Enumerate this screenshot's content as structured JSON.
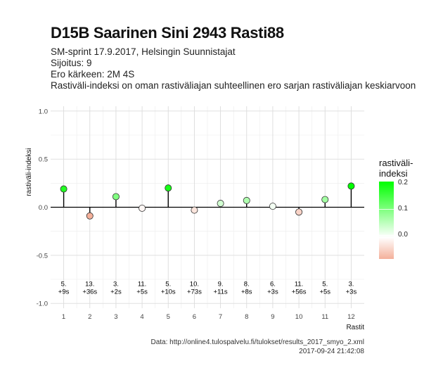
{
  "title": "D15B Saarinen Sini 2943 Rasti88",
  "subtitle_lines": [
    "SM-sprint 17.9.2017, Helsingin Suunnistajat",
    "Sijoitus: 9",
    "Ero kärkeen: 2M 4S",
    "Rastiväli-indeksi on oman rastiväliajan suhteellinen ero sarjan rastiväliajan keskiarvoon"
  ],
  "caption_lines": [
    "Data: http://online4.tulospalvelu.fi/tulokset/results_2017_smyo_2.xml",
    "2017-09-24 21:42:08"
  ],
  "colors": {
    "high": "#00ff00",
    "mid": "#ffffff",
    "low": "#f4b09a"
  },
  "legend": {
    "title": "rastiväli-\nindeksi",
    "labels": [
      "0.2",
      "0.1",
      "0.0"
    ]
  },
  "chart_data": {
    "type": "lollipop",
    "xlabel": "Rastit",
    "ylabel": "rastiväli-indeksi",
    "xlim": [
      0.5,
      12.5
    ],
    "ylim": [
      -1.05,
      1.05
    ],
    "x_ticks": [
      "1",
      "2",
      "3",
      "4",
      "5",
      "6",
      "7",
      "8",
      "9",
      "10",
      "11",
      "12"
    ],
    "y_ticks": [
      "1.0",
      "0.5",
      "0.0",
      "-0.5",
      "-1.0"
    ],
    "y_tick_values": [
      1.0,
      0.5,
      0.0,
      -0.5,
      -1.0
    ],
    "grid": true,
    "legend_position": "right",
    "points": [
      {
        "x": 1,
        "y": 0.19,
        "rank": "5.",
        "diff": "+9s"
      },
      {
        "x": 2,
        "y": -0.09,
        "rank": "13.",
        "diff": "+36s"
      },
      {
        "x": 3,
        "y": 0.11,
        "rank": "3.",
        "diff": "+2s"
      },
      {
        "x": 4,
        "y": -0.01,
        "rank": "11.",
        "diff": "+5s"
      },
      {
        "x": 5,
        "y": 0.2,
        "rank": "5.",
        "diff": "+10s"
      },
      {
        "x": 6,
        "y": -0.03,
        "rank": "10.",
        "diff": "+73s"
      },
      {
        "x": 7,
        "y": 0.04,
        "rank": "9.",
        "diff": "+11s"
      },
      {
        "x": 8,
        "y": 0.07,
        "rank": "8.",
        "diff": "+8s"
      },
      {
        "x": 9,
        "y": 0.01,
        "rank": "6.",
        "diff": "+3s"
      },
      {
        "x": 10,
        "y": -0.05,
        "rank": "11.",
        "diff": "+56s"
      },
      {
        "x": 11,
        "y": 0.08,
        "rank": "5.",
        "diff": "+5s"
      },
      {
        "x": 12,
        "y": 0.22,
        "rank": "3.",
        "diff": "+3s"
      }
    ]
  }
}
